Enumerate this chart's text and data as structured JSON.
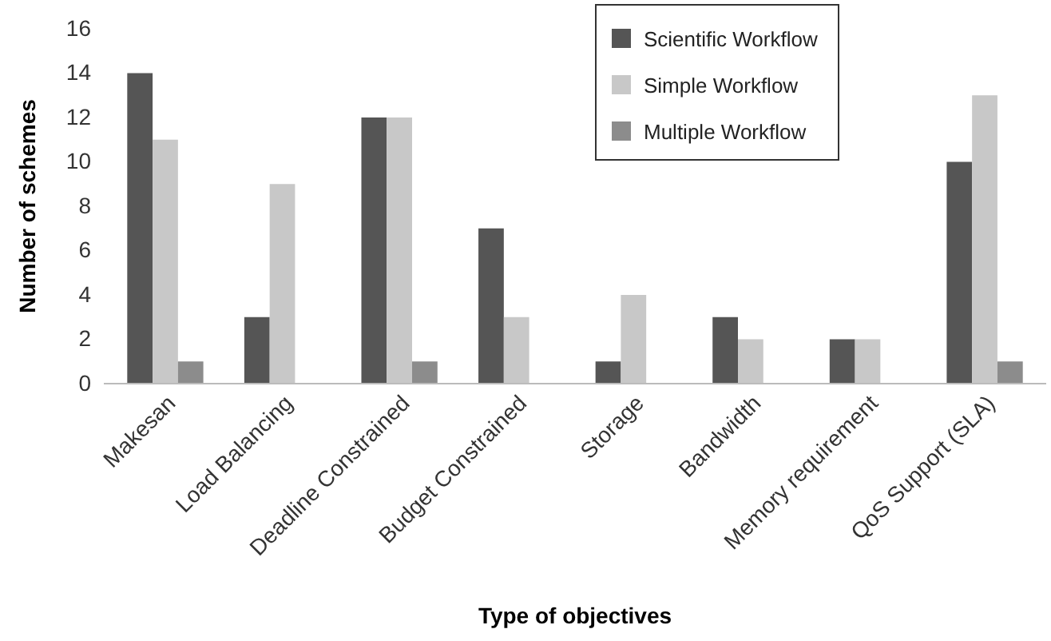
{
  "chart_data": {
    "type": "bar",
    "xlabel": "Type of objectives",
    "ylabel": "Number of schemes",
    "categories": [
      "Makesan",
      "Load Balancing",
      "Deadline Constrained",
      "Budget Constrained",
      "Storage",
      "Bandwidth",
      "Memory requirement",
      "QoS Support (SLA)"
    ],
    "series": [
      {
        "name": "Scientific Workflow",
        "color": "#555555",
        "values": [
          14,
          3,
          12,
          7,
          1,
          3,
          2,
          10
        ]
      },
      {
        "name": "Simple Workflow",
        "color": "#c8c8c8",
        "values": [
          11,
          9,
          12,
          3,
          4,
          2,
          2,
          13
        ]
      },
      {
        "name": "Multiple Workflow",
        "color": "#8c8c8c",
        "values": [
          1,
          0,
          1,
          0,
          0,
          0,
          0,
          1
        ]
      }
    ],
    "ylim": [
      0,
      16
    ],
    "yticks": [
      0,
      2,
      4,
      6,
      8,
      10,
      12,
      14,
      16
    ],
    "grid": false,
    "legend": "top right"
  }
}
